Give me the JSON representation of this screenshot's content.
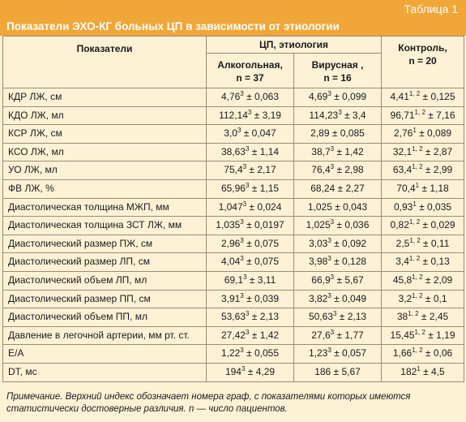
{
  "table_label": "Таблица 1",
  "title": "Показатели ЭХО-КГ больных ЦП в зависимости от этиологии",
  "headers": {
    "indicators": "Показатели",
    "cp_etiology": "ЦП, этиология",
    "alcoholic_name": "Алкогольная,",
    "alcoholic_n": "n = 37",
    "viral_name": "Вирусная ,",
    "viral_n": "n = 16",
    "control_name": "Контроль,",
    "control_n": "n = 20"
  },
  "rows": [
    {
      "name": "КДР ЛЖ, см",
      "alc": {
        "v": "4,76",
        "s": "3",
        "e": " ± 0,063"
      },
      "vir": {
        "v": "4,69",
        "s": "3",
        "e": " ± 0,099"
      },
      "ctl": {
        "v": "4,41",
        "s": "1, 2",
        "e": " ± 0,125"
      }
    },
    {
      "name": "КДО ЛЖ, мл",
      "alc": {
        "v": "112,14",
        "s": "3",
        "e": " ± 3,19"
      },
      "vir": {
        "v": "114,23",
        "s": "3",
        "e": " ± 3,4"
      },
      "ctl": {
        "v": "96,71",
        "s": "1, 2",
        "e": " ± 7,16"
      }
    },
    {
      "name": "КСР ЛЖ, см",
      "alc": {
        "v": "3,0",
        "s": "3",
        "e": " ± 0,047"
      },
      "vir": {
        "v": "2,89",
        "s": "",
        "e": " ± 0,085"
      },
      "ctl": {
        "v": "2,76",
        "s": "1",
        "e": " ± 0,089"
      }
    },
    {
      "name": "КСО ЛЖ, мл",
      "alc": {
        "v": "38,63",
        "s": "3",
        "e": " ± 1,14"
      },
      "vir": {
        "v": "38,7",
        "s": "3",
        "e": " ± 1,42"
      },
      "ctl": {
        "v": "32,1",
        "s": "1, 2",
        "e": " ± 2,87"
      }
    },
    {
      "name": "УО ЛЖ, мл",
      "alc": {
        "v": "75,4",
        "s": "3",
        "e": " ± 2,17"
      },
      "vir": {
        "v": "76,4",
        "s": "3",
        "e": " ± 2,98"
      },
      "ctl": {
        "v": "63,4",
        "s": "1, 2",
        "e": " ± 2,99"
      }
    },
    {
      "name": "ФВ ЛЖ, %",
      "alc": {
        "v": "65,96",
        "s": "3",
        "e": " ± 1,15"
      },
      "vir": {
        "v": "68,24",
        "s": "",
        "e": " ± 2,27"
      },
      "ctl": {
        "v": "70,4",
        "s": "1",
        "e": " ± 1,18"
      }
    },
    {
      "name": "Диастолическая толщина МЖП, мм",
      "alc": {
        "v": "1,047",
        "s": "3",
        "e": " ± 0,024"
      },
      "vir": {
        "v": "1,025",
        "s": "",
        "e": " ± 0,043"
      },
      "ctl": {
        "v": "0,93",
        "s": "1",
        "e": " ± 0,035"
      }
    },
    {
      "name": "Диастолическая толщина ЗСТ ЛЖ, мм",
      "alc": {
        "v": "1,035",
        "s": "3",
        "e": " ± 0,0197"
      },
      "vir": {
        "v": "1,025",
        "s": "3",
        "e": " ± 0,036"
      },
      "ctl": {
        "v": "0,82",
        "s": "1, 2",
        "e": " ± 0,029"
      }
    },
    {
      "name": "Диастолический размер ПЖ, см",
      "alc": {
        "v": "2,96",
        "s": "3",
        "e": " ± 0,075"
      },
      "vir": {
        "v": "3,03",
        "s": "3",
        "e": " ± 0,092"
      },
      "ctl": {
        "v": "2,5",
        "s": "1, 2",
        "e": " ± 0,11"
      }
    },
    {
      "name": "Диастолический размер ЛП, см",
      "alc": {
        "v": "4,04",
        "s": "3",
        "e": " ± 0,075"
      },
      "vir": {
        "v": "3,98",
        "s": "3",
        "e": " ± 0,128"
      },
      "ctl": {
        "v": "3,4",
        "s": "1, 2",
        "e": " ± 0,13"
      }
    },
    {
      "name": "Диастолический объем ЛП, мл",
      "alc": {
        "v": "69,1",
        "s": "3",
        "e": " ± 3,11"
      },
      "vir": {
        "v": "66,9",
        "s": "3",
        "e": " ± 5,67"
      },
      "ctl": {
        "v": "45,8",
        "s": "1, 2",
        "e": " ± 2,09"
      }
    },
    {
      "name": "Диастолический размер ПП, см",
      "alc": {
        "v": "3,91",
        "s": "3",
        "e": " ± 0,039"
      },
      "vir": {
        "v": "3,82",
        "s": "3",
        "e": " ± 0,049"
      },
      "ctl": {
        "v": "3,2",
        "s": "1, 2",
        "e": " ± 0,1"
      }
    },
    {
      "name": "Диастолический объем ПП, мл",
      "alc": {
        "v": "53,63",
        "s": "3",
        "e": " ± 2,13"
      },
      "vir": {
        "v": "50,63",
        "s": "3",
        "e": " ± 2,13"
      },
      "ctl": {
        "v": "38",
        "s": "1, 2",
        "e": " ± 2,45"
      }
    },
    {
      "name": "Давление в легочной артерии, мм рт. ст.",
      "alc": {
        "v": "27,42",
        "s": "3",
        "e": " ± 1,42"
      },
      "vir": {
        "v": "27,6",
        "s": "3",
        "e": " ± 1,77"
      },
      "ctl": {
        "v": "15,45",
        "s": "1, 2",
        "e": " ± 1,19"
      }
    },
    {
      "name": "E/A",
      "alc": {
        "v": "1,22",
        "s": "3",
        "e": " ± 0,055"
      },
      "vir": {
        "v": "1,23",
        "s": "3",
        "e": " ± 0,057"
      },
      "ctl": {
        "v": "1,66",
        "s": "1, 2",
        "e": " ± 0,06"
      }
    },
    {
      "name": "DT, мс",
      "alc": {
        "v": "194",
        "s": "3",
        "e": " ± 4,29"
      },
      "vir": {
        "v": "186",
        "s": "",
        "e": " ± 5,67"
      },
      "ctl": {
        "v": "182",
        "s": "1",
        "e": " ± 4,5"
      }
    }
  ],
  "note": "Примечание. Верхний индекс обозначает номера граф, с показателями которых имеются статистически достоверные различия. n — число пациентов.",
  "colors": {
    "accent": "#f1a638",
    "background": "#fdf2d6",
    "grid": "#9a8d72"
  }
}
